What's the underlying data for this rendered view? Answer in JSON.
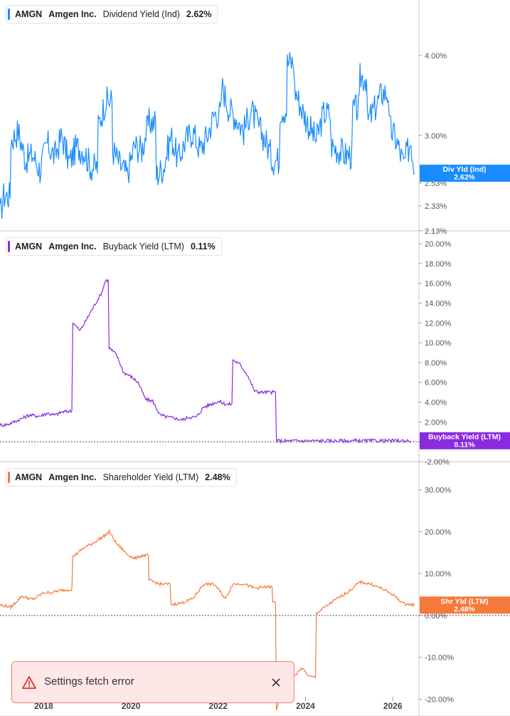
{
  "chart_data": [
    {
      "type": "line",
      "ticker": "AMGN",
      "company": "Amgen Inc.",
      "metric": "Dividend Yield (Ind)",
      "current": "2.62%",
      "badge": [
        "Div Yld (Ind)",
        "2.62%"
      ],
      "color": "#1a8cff",
      "scale": "log",
      "ylim": [
        2.13,
        4.7
      ],
      "yticks": [
        "4.00%",
        "3.00%",
        "2.53%",
        "2.33%",
        "2.13%"
      ],
      "ytick_values": [
        4.0,
        3.0,
        2.53,
        2.33,
        2.13
      ],
      "x": [
        "2017-01",
        "2017-02",
        "2017-04",
        "2017-06",
        "2017-08",
        "2017-10",
        "2017-12",
        "2018-02",
        "2018-04",
        "2018-06",
        "2018-08",
        "2018-10",
        "2018-12",
        "2019-02",
        "2019-04",
        "2019-06",
        "2019-08",
        "2019-10",
        "2019-12",
        "2020-02",
        "2020-04",
        "2020-06",
        "2020-08",
        "2020-10",
        "2020-12",
        "2021-02",
        "2021-04",
        "2021-06",
        "2021-08",
        "2021-10",
        "2021-12",
        "2022-02",
        "2022-04",
        "2022-06",
        "2022-08",
        "2022-10",
        "2022-12",
        "2023-02",
        "2023-04",
        "2023-06",
        "2023-08",
        "2023-10",
        "2023-12",
        "2024-02",
        "2024-04",
        "2024-06",
        "2024-08",
        "2024-10",
        "2024-12",
        "2025-02",
        "2025-04",
        "2025-06",
        "2025-08",
        "2025-10",
        "2025-12",
        "2026-02",
        "2026-04",
        "2026-06",
        "2026-07"
      ],
      "values": [
        2.25,
        2.42,
        2.95,
        3.05,
        2.75,
        2.8,
        2.65,
        2.92,
        2.78,
        3.0,
        2.72,
        2.88,
        2.85,
        2.68,
        3.1,
        3.4,
        2.85,
        2.7,
        2.6,
        2.9,
        2.85,
        3.15,
        2.6,
        2.68,
        3.0,
        2.75,
        2.95,
        3.05,
        2.85,
        3.0,
        3.25,
        3.6,
        3.3,
        3.2,
        3.05,
        3.3,
        3.1,
        2.95,
        2.75,
        3.3,
        3.9,
        3.55,
        3.3,
        3.1,
        2.95,
        3.25,
        2.9,
        2.85,
        2.8,
        3.3,
        3.7,
        3.15,
        3.3,
        3.5,
        3.1,
        2.95,
        2.7,
        2.95,
        2.62
      ]
    },
    {
      "type": "line",
      "ticker": "AMGN",
      "company": "Amgen Inc.",
      "metric": "Buyback Yield (LTM)",
      "current": "0.11%",
      "badge": [
        "Buyback Yield (LTM)",
        "0.11%"
      ],
      "color": "#8a2be2",
      "ylim": [
        -2.0,
        20.0
      ],
      "yticks": [
        "20.00%",
        "18.00%",
        "16.00%",
        "14.00%",
        "12.00%",
        "10.00%",
        "8.00%",
        "6.00%",
        "4.00%",
        "2.00%",
        "-2.00%"
      ],
      "ytick_values": [
        20,
        18,
        16,
        14,
        12,
        10,
        8,
        6,
        4,
        2,
        -2
      ],
      "x": [
        "2017-01",
        "2017-03",
        "2017-06",
        "2017-09",
        "2017-12",
        "2018-02",
        "2018-04",
        "2018-06",
        "2018-08",
        "2018-09",
        "2018-11",
        "2019-01",
        "2019-03",
        "2019-05",
        "2019-06",
        "2019-07",
        "2019-09",
        "2019-11",
        "2020-01",
        "2020-03",
        "2020-05",
        "2020-07",
        "2020-09",
        "2020-11",
        "2021-01",
        "2021-03",
        "2021-05",
        "2021-07",
        "2021-09",
        "2021-11",
        "2022-01",
        "2022-03",
        "2022-05",
        "2022-07",
        "2022-09",
        "2022-11",
        "2023-01",
        "2023-03",
        "2023-05",
        "2023-07",
        "2023-09",
        "2023-11",
        "2024-06",
        "2025-06",
        "2026-06"
      ],
      "values": [
        1.7,
        1.75,
        2.2,
        2.7,
        2.6,
        2.9,
        2.7,
        3.0,
        3.1,
        12.1,
        11.2,
        12.5,
        13.8,
        15.1,
        16.3,
        9.5,
        8.8,
        7.0,
        6.6,
        6.0,
        4.3,
        4.1,
        2.7,
        2.5,
        2.4,
        2.2,
        2.5,
        2.5,
        3.5,
        3.8,
        4.1,
        3.8,
        8.3,
        7.8,
        6.8,
        5.1,
        5.0,
        5.0,
        0.1,
        0.08,
        0.1,
        0.1,
        0.1,
        0.11,
        0.11
      ]
    },
    {
      "type": "line",
      "ticker": "AMGN",
      "company": "Amgen Inc.",
      "metric": "Shareholder Yield (LTM)",
      "current": "2.48%",
      "badge": [
        "Shr Yld (LTM)",
        "2.48%"
      ],
      "color": "#f5793a",
      "ylim": [
        -24.0,
        34.0
      ],
      "yticks": [
        "30.00%",
        "20.00%",
        "10.00%",
        "0.00%",
        "-10.00%",
        "-20.00%"
      ],
      "ytick_values": [
        30,
        20,
        10,
        0,
        -10,
        -20
      ],
      "x": [
        "2017-01",
        "2017-04",
        "2017-07",
        "2017-10",
        "2018-01",
        "2018-03",
        "2018-06",
        "2018-08",
        "2018-09",
        "2018-12",
        "2019-03",
        "2019-06",
        "2019-07",
        "2019-09",
        "2019-12",
        "2020-02",
        "2020-04",
        "2020-06",
        "2020-09",
        "2020-12",
        "2021-03",
        "2021-06",
        "2021-09",
        "2021-12",
        "2022-03",
        "2022-05",
        "2022-08",
        "2022-11",
        "2023-02",
        "2023-04",
        "2023-05",
        "2023-06",
        "2023-08",
        "2023-10",
        "2023-12",
        "2024-02",
        "2024-03",
        "2024-04",
        "2024-07",
        "2024-10",
        "2025-01",
        "2025-04",
        "2025-07",
        "2025-10",
        "2026-01",
        "2026-04",
        "2026-07"
      ],
      "values": [
        2.5,
        2.0,
        4.6,
        3.8,
        5.4,
        5.5,
        6.0,
        6.2,
        14.0,
        16.1,
        17.5,
        19.2,
        20.0,
        17.2,
        14.6,
        13.6,
        14.3,
        8.4,
        7.5,
        2.6,
        3.0,
        4.0,
        7.5,
        7.4,
        4.0,
        7.5,
        7.6,
        6.5,
        6.8,
        3.2,
        -22.5,
        -19.5,
        -17.5,
        -14.5,
        -12.5,
        -14.6,
        -14.7,
        0.5,
        2.4,
        4.2,
        5.8,
        8.0,
        7.5,
        6.4,
        5.0,
        2.8,
        2.48
      ]
    }
  ],
  "xaxis": {
    "ticks": [
      "2018",
      "2020",
      "2022",
      "2024",
      "2026"
    ],
    "tick_values": [
      2018,
      2020,
      2022,
      2024,
      2026
    ]
  },
  "toast": {
    "message": "Settings fetch error",
    "type": "error"
  }
}
